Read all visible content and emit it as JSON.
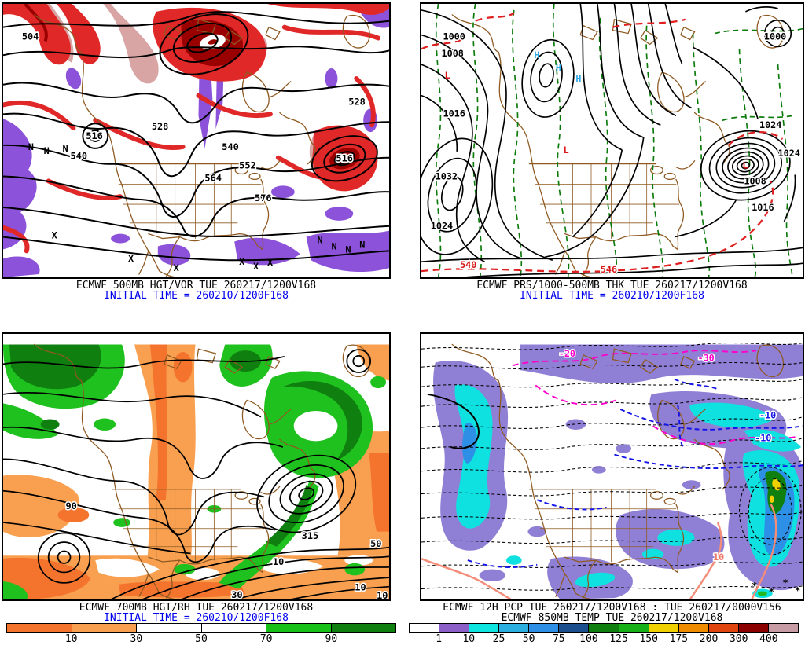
{
  "product": "ECMWF 4-panel forecast",
  "colors": {
    "initial_time_text": "#0000EE",
    "map_boundaries": "#8F5A22",
    "vort_red": "#E02828",
    "vort_dark_red": "#9B0000",
    "vort_pink": "#D8A4A4",
    "vort_purple": "#8C52D9",
    "thickness_green": "#0A7A0A",
    "thickness_red": "#E02020",
    "rh_dry_dark": "#F4742E",
    "rh_dry_light": "#F9A050",
    "rh_moist_light": "#1FC11F",
    "rh_moist_dark": "#0F7F0F",
    "pcp_purple": "#9080D5",
    "pcp_cyan": "#0FE0E0",
    "pcp_blue": "#2E8FE6",
    "temp_magenta": "#FF00CC",
    "temp_blue": "#1414E6",
    "temp_salmon": "#F58C78"
  },
  "panels": [
    {
      "name": "500MB height / vorticity",
      "caption": "ECMWF 500MB HGT/VOR TUE 260217/1200V168",
      "initial_time": "INITIAL TIME = 260210/1200F168",
      "contour_labels": [
        "504",
        "516",
        "528",
        "540",
        "552",
        "564",
        "576",
        "516",
        "528",
        "540"
      ],
      "symbols": {
        "vort_min": "N",
        "vort_max": "X"
      }
    },
    {
      "name": "MSL pressure / 1000-500MB thickness",
      "caption": "ECMWF PRS/1000-500MB THK TUE 260217/1200V168",
      "initial_time": "INITIAL TIME = 260210/1200F168",
      "isobar_labels": [
        "1032",
        "1024",
        "1016",
        "1008",
        "1000",
        "1024",
        "1024",
        "1008",
        "1016",
        "1000"
      ],
      "thickness_labels": [
        "540",
        "546"
      ],
      "symbols": {
        "low": "L",
        "high": "H"
      }
    },
    {
      "name": "700MB height / relative humidity",
      "caption": "ECMWF 700MB HGT/RH TUE 260217/1200V168",
      "initial_time": "INITIAL TIME = 260210/1200F168",
      "contour_labels": [
        "315",
        "10",
        "50",
        "10",
        "30",
        "90",
        "10"
      ],
      "colorbar": {
        "values": [
          "10",
          "30",
          "50",
          "70",
          "90"
        ],
        "colors": [
          "#F4742E",
          "#F9A050",
          "#FFFFFF",
          "#FFFFFF",
          "#17C117",
          "#0F7F0F"
        ]
      }
    },
    {
      "name": "12h precipitation / 850MB temperature",
      "caption": "ECMWF 12H PCP TUE 260217/1200V168 : TUE 260217/0000V156",
      "caption2": "ECMWF 850MB TEMP TUE 260217/1200V168",
      "temp_labels": {
        "magenta": [
          "-20",
          "-30"
        ],
        "blue": [
          "-10",
          "-10"
        ],
        "salmon": [
          "10"
        ]
      },
      "snow_symbol": "*",
      "colorbar": {
        "values": [
          "1",
          "10",
          "25",
          "50",
          "75",
          "100",
          "125",
          "150",
          "175",
          "200",
          "300",
          "400"
        ],
        "colors": [
          "#FFFFFF",
          "#8B5FC7",
          "#0FE5E0",
          "#2BAEE0",
          "#2E8FE6",
          "#1C4F8E",
          "#0F7F0F",
          "#17B117",
          "#F0D000",
          "#F08C00",
          "#E0440F",
          "#8B0000",
          "#C79CA4"
        ]
      }
    }
  ]
}
